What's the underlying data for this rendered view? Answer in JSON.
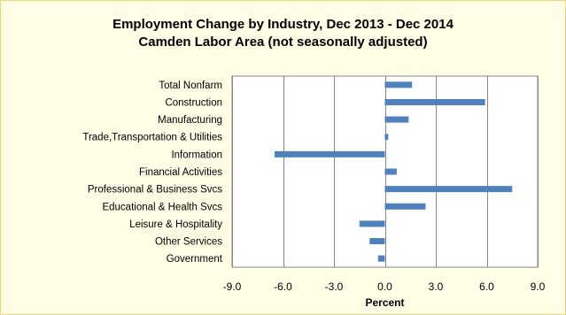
{
  "chart_data": {
    "type": "bar",
    "orientation": "horizontal",
    "title": "Employment Change by Industry, Dec 2013 - Dec 2014",
    "subtitle": "Camden Labor Area (not seasonally adjusted)",
    "xlabel": "Percent",
    "ylabel": "",
    "xlim": [
      -9.0,
      9.0
    ],
    "ticks": [
      -9.0,
      -6.0,
      -3.0,
      0.0,
      3.0,
      6.0,
      9.0
    ],
    "tick_labels": [
      "-9.0",
      "-6.0",
      "-3.0",
      "0.0",
      "3.0",
      "6.0",
      "9.0"
    ],
    "grid": true,
    "legend": "none",
    "bar_color": "#4f81bd",
    "categories": [
      "Total Nonfarm",
      "Construction",
      "Manufacturing",
      "Trade,Transportation & Utilities",
      "Information",
      "Financial Activities",
      "Professional & Business Svcs",
      "Educational & Health Svcs",
      "Leisure & Hospitality",
      "Other Services",
      "Government"
    ],
    "values": [
      1.6,
      5.9,
      1.4,
      0.2,
      -6.5,
      0.7,
      7.5,
      2.4,
      -1.5,
      -0.9,
      -0.4
    ]
  }
}
